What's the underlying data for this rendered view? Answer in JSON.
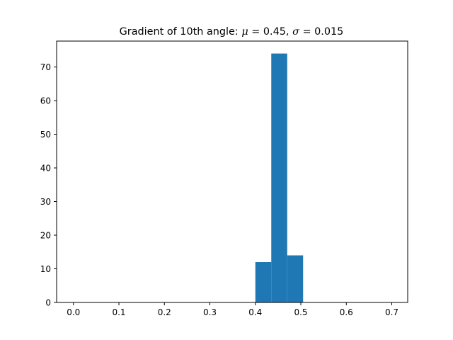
{
  "chart_data": {
    "type": "bar",
    "title_prefix": "Gradient of 10th angle: ",
    "title_mu_symbol": "μ",
    "title_mu_value": " = 0.45, ",
    "title_sigma_symbol": "σ",
    "title_sigma_value": " = 0.015",
    "xlabel": "",
    "ylabel": "",
    "xlim": [
      -0.037,
      0.735
    ],
    "ylim": [
      0,
      77.7
    ],
    "x_ticks": [
      0.0,
      0.1,
      0.2,
      0.3,
      0.4,
      0.5,
      0.6,
      0.7
    ],
    "x_tick_labels": [
      "0.0",
      "0.1",
      "0.2",
      "0.3",
      "0.4",
      "0.5",
      "0.6",
      "0.7"
    ],
    "y_ticks": [
      0,
      10,
      20,
      30,
      40,
      50,
      60,
      70
    ],
    "y_tick_labels": [
      "0",
      "10",
      "20",
      "30",
      "40",
      "50",
      "60",
      "70"
    ],
    "bins": [
      {
        "x_start": 0.4,
        "x_end": 0.435,
        "count": 12
      },
      {
        "x_start": 0.435,
        "x_end": 0.47,
        "count": 74
      },
      {
        "x_start": 0.47,
        "x_end": 0.505,
        "count": 14
      }
    ],
    "bar_color": "#1f77b4",
    "grid": false,
    "legend": "none"
  }
}
